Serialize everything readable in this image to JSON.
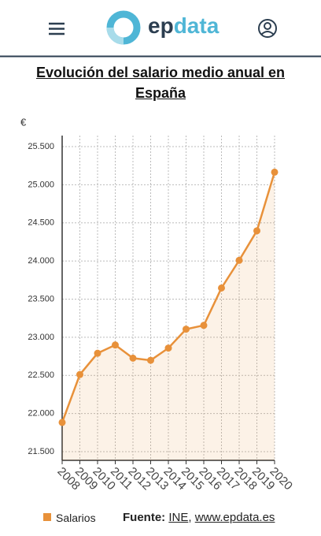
{
  "header": {
    "logo": [
      "ep",
      "data"
    ]
  },
  "chart_data": {
    "type": "line",
    "title": "Evolución del salario medio anual en España",
    "y_unit": "€",
    "categories": [
      "2008",
      "2009",
      "2010",
      "2011",
      "2012",
      "2013",
      "2014",
      "2015",
      "2016",
      "2017",
      "2018",
      "2019",
      "2020"
    ],
    "series": [
      {
        "name": "Salarios",
        "color": "#e8913a",
        "values": [
          21883,
          22511,
          22790,
          22899,
          22726,
          22698,
          22858,
          23106,
          23156,
          23646,
          24009,
          24396,
          25165
        ]
      }
    ],
    "ylim": [
      21386,
      25645
    ],
    "yticks": [
      {
        "value": 21500,
        "label": "21.500"
      },
      {
        "value": 22000,
        "label": "22.000"
      },
      {
        "value": 22500,
        "label": "22.500"
      },
      {
        "value": 23000,
        "label": "23.000"
      },
      {
        "value": 23500,
        "label": "23.500"
      },
      {
        "value": 24000,
        "label": "24.000"
      },
      {
        "value": 24500,
        "label": "24.500"
      },
      {
        "value": 25000,
        "label": "25.000"
      },
      {
        "value": 25500,
        "label": "25.500"
      }
    ],
    "grid": true,
    "area": true
  },
  "footer": {
    "source_label": "Fuente:",
    "source_links": [
      "INE",
      "www.epdata.es"
    ],
    "separator": ","
  }
}
